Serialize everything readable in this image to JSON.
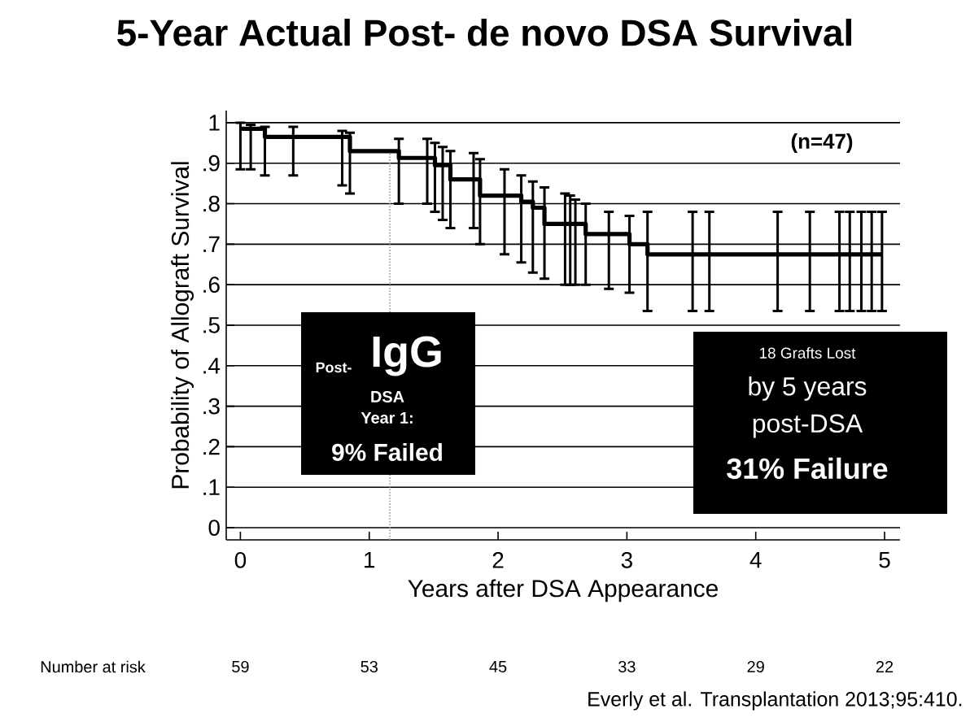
{
  "chart_data": {
    "type": "step",
    "title": "5-Year Actual Post- de novo DSA Survival",
    "xlabel": "Years after DSA Appearance",
    "ylabel": "Probability of Allograft Survival",
    "xlim": [
      -0.11,
      5.12
    ],
    "ylim": [
      -0.03,
      1.03
    ],
    "xticks": [
      0,
      1,
      2,
      3,
      4,
      5
    ],
    "yticks": [
      {
        "value": 0,
        "label": "0"
      },
      {
        "value": 0.1,
        "label": ".1"
      },
      {
        "value": 0.2,
        "label": ".2"
      },
      {
        "value": 0.3,
        "label": ".3"
      },
      {
        "value": 0.4,
        "label": ".4"
      },
      {
        "value": 0.5,
        "label": ".5"
      },
      {
        "value": 0.6,
        "label": ".6"
      },
      {
        "value": 0.7,
        "label": ".7"
      },
      {
        "value": 0.8,
        "label": ".8"
      },
      {
        "value": 0.9,
        "label": ".9"
      },
      {
        "value": 1,
        "label": "1"
      }
    ],
    "grid": "y",
    "marker": "none",
    "line_style": "solid",
    "series": [
      {
        "color": "#000000",
        "x": [
          0,
          0.08,
          0.19,
          0.41,
          0.79,
          0.85,
          1.23,
          1.45,
          1.51,
          1.57,
          1.63,
          1.81,
          1.86,
          2.05,
          2.18,
          2.27,
          2.36,
          2.52,
          2.56,
          2.6,
          2.68,
          2.86,
          3.02,
          3.16,
          3.51,
          3.64,
          4.17,
          4.42,
          4.65,
          4.73,
          4.82,
          4.9,
          4.98
        ],
        "values": [
          0.985,
          0.985,
          0.965,
          0.965,
          0.965,
          0.93,
          0.913,
          0.913,
          0.895,
          0.895,
          0.86,
          0.86,
          0.82,
          0.82,
          0.805,
          0.79,
          0.75,
          0.75,
          0.75,
          0.75,
          0.725,
          0.725,
          0.7,
          0.675,
          0.675,
          0.675,
          0.675,
          0.675,
          0.675,
          0.675,
          0.675,
          0.675,
          0.675
        ],
        "errors": [
          [
            0.885,
            1.0
          ],
          [
            0.885,
            0.995
          ],
          [
            0.87,
            0.99
          ],
          [
            0.87,
            0.99
          ],
          [
            0.845,
            0.98
          ],
          [
            0.825,
            0.975
          ],
          [
            0.8,
            0.96
          ],
          [
            0.8,
            0.96
          ],
          [
            0.78,
            0.95
          ],
          [
            0.76,
            0.94
          ],
          [
            0.74,
            0.93
          ],
          [
            0.74,
            0.925
          ],
          [
            0.7,
            0.91
          ],
          [
            0.675,
            0.885
          ],
          [
            0.655,
            0.87
          ],
          [
            0.63,
            0.855
          ],
          [
            0.615,
            0.84
          ],
          [
            0.6,
            0.825
          ],
          [
            0.6,
            0.82
          ],
          [
            0.6,
            0.81
          ],
          [
            0.6,
            0.8
          ],
          [
            0.59,
            0.78
          ],
          [
            0.58,
            0.77
          ],
          [
            0.535,
            0.78
          ],
          [
            0.535,
            0.78
          ],
          [
            0.535,
            0.78
          ],
          [
            0.535,
            0.78
          ],
          [
            0.535,
            0.78
          ],
          [
            0.535,
            0.78
          ],
          [
            0.535,
            0.78
          ],
          [
            0.535,
            0.78
          ],
          [
            0.535,
            0.78
          ],
          [
            0.535,
            0.78
          ]
        ]
      }
    ],
    "ref_lines": [
      {
        "axis": "x",
        "value": 1.16,
        "color": "#999999",
        "line_style": "dotted"
      }
    ],
    "annotations": [
      "(n=47)",
      "Post-",
      "IgG",
      "DSA",
      "Year 1:",
      "9% Failed",
      "18 Grafts Lost",
      "by 5 years",
      "post-DSA",
      "31% Failure",
      "Number at risk",
      "59",
      "53",
      "45",
      "33",
      "29",
      "22",
      "Everly et al. Transplantation 2013;95:410."
    ]
  }
}
